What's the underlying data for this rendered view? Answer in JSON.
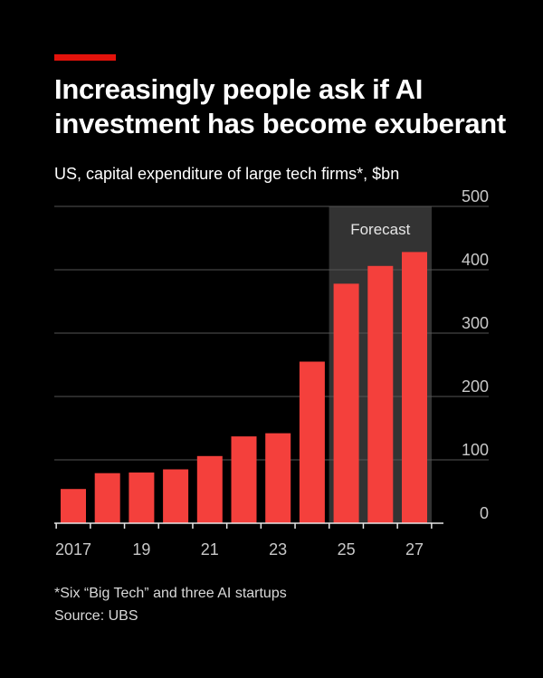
{
  "header": {
    "title_line1": "Increasingly people ask if AI",
    "title_line2": "investment has become exuberant",
    "subtitle": "US, capital expenditure of large tech firms*, $bn"
  },
  "colors": {
    "bar": "#f4403c",
    "accent": "#e3120b",
    "forecast_band": "#333333"
  },
  "chart_data": {
    "type": "bar",
    "categories": [
      "2017",
      "2018",
      "2019",
      "2020",
      "2021",
      "2022",
      "2023",
      "2024",
      "2025",
      "2026",
      "2027"
    ],
    "values": [
      54,
      79,
      80,
      85,
      106,
      137,
      142,
      255,
      378,
      406,
      428
    ],
    "ylim": [
      0,
      500
    ],
    "yticks": [
      0,
      100,
      200,
      300,
      400,
      500
    ],
    "x_tick_labels": [
      "2017",
      "19",
      "21",
      "23",
      "25",
      "27"
    ],
    "x_tick_label_years": [
      "2017",
      "2019",
      "2021",
      "2023",
      "2025",
      "2027"
    ],
    "forecast": {
      "label": "Forecast",
      "from": "2025",
      "to": "2027"
    },
    "grid": true,
    "y_axis_side": "right"
  },
  "footer": {
    "footnote": "*Six “Big Tech” and three AI startups",
    "source": "Source: UBS"
  }
}
